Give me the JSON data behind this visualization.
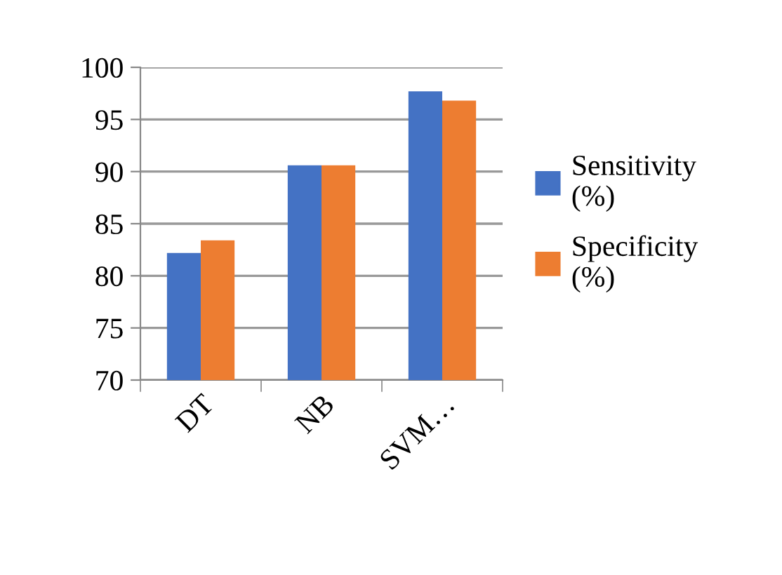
{
  "chart_data": {
    "type": "bar",
    "categories": [
      "DT",
      "NB",
      "SVM…"
    ],
    "series": [
      {
        "name": "Sensitivity (%)",
        "color": "#4472c4",
        "values": [
          82.2,
          90.6,
          97.7
        ]
      },
      {
        "name": "Specificity (%)",
        "color": "#ed7d31",
        "values": [
          83.4,
          90.6,
          96.8
        ]
      }
    ],
    "ylim": [
      70,
      100
    ],
    "yticks": [
      70,
      75,
      80,
      85,
      90,
      95,
      100
    ],
    "grid": "y",
    "legend": "right"
  }
}
